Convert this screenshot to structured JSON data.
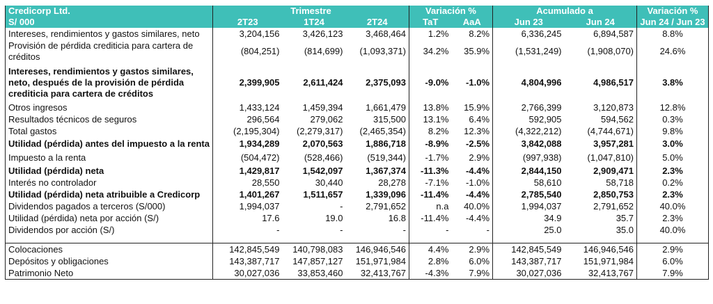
{
  "header": {
    "company": "Credicorp Ltd.",
    "currency": "S/ 000",
    "group_trimestre": "Trimestre",
    "group_variacion": "Variación %",
    "group_acumulado": "Acumulado a",
    "group_variacion2": "Variación %",
    "col_2T23": "2T23",
    "col_1T24": "1T24",
    "col_2T24": "2T24",
    "col_tat": "TaT",
    "col_aaa": "AaA",
    "col_jun23": "Jun 23",
    "col_jun24": "Jun 24",
    "col_var": "Jun 24 / Jun 23"
  },
  "rows": [
    {
      "label": "Intereses, rendimientos y gastos similares, neto",
      "v": [
        "3,204,156",
        "3,426,123",
        "3,468,464",
        "1.2%",
        "8.2%",
        "6,336,245",
        "6,894,587",
        "8.8%"
      ]
    },
    {
      "label": "Provisión de pérdida crediticia para cartera de créditos",
      "v": [
        "(804,251)",
        "(814,699)",
        "(1,093,371)",
        "34.2%",
        "35.9%",
        "(1,531,249)",
        "(1,908,070)",
        "24.6%"
      ]
    },
    {
      "label": "Intereses, rendimientos y gastos similares, neto, después de la provisión de pérdida crediticia para cartera de créditos",
      "v": [
        "2,399,905",
        "2,611,424",
        "2,375,093",
        "-9.0%",
        "-1.0%",
        "4,804,996",
        "4,986,517",
        "3.8%"
      ]
    },
    {
      "label": "Otros ingresos",
      "v": [
        "1,433,124",
        "1,459,394",
        "1,661,479",
        "13.8%",
        "15.9%",
        "2,766,399",
        "3,120,873",
        "12.8%"
      ]
    },
    {
      "label": "Resultados técnicos de seguros",
      "v": [
        "296,564",
        "279,062",
        "315,500",
        "13.1%",
        "6.4%",
        "592,905",
        "594,562",
        "0.3%"
      ]
    },
    {
      "label": "Total gastos",
      "v": [
        "(2,195,304)",
        "(2,279,317)",
        "(2,465,354)",
        "8.2%",
        "12.3%",
        "(4,322,212)",
        "(4,744,671)",
        "9.8%"
      ]
    },
    {
      "label": "Utilidad (pérdida) antes del impuesto a la renta",
      "v": [
        "1,934,289",
        "2,070,563",
        "1,886,718",
        "-8.9%",
        "-2.5%",
        "3,842,088",
        "3,957,281",
        "3.0%"
      ]
    },
    {
      "label": "Impuesto a la renta",
      "v": [
        "(504,472)",
        "(528,466)",
        "(519,344)",
        "-1.7%",
        "2.9%",
        "(997,938)",
        "(1,047,810)",
        "5.0%"
      ]
    },
    {
      "label": "Utilidad (pérdida) neta",
      "v": [
        "1,429,817",
        "1,542,097",
        "1,367,374",
        "-11.3%",
        "-4.4%",
        "2,844,150",
        "2,909,471",
        "2.3%"
      ]
    },
    {
      "label": "Interés no controlador",
      "v": [
        "28,550",
        "30,440",
        "28,278",
        "-7.1%",
        "-1.0%",
        "58,610",
        "58,718",
        "0.2%"
      ]
    },
    {
      "label": "Utilidad (pérdida) neta atribuible a Credicorp",
      "v": [
        "1,401,267",
        "1,511,657",
        "1,339,096",
        "-11.4%",
        "-4.4%",
        "2,785,540",
        "2,850,753",
        "2.3%"
      ]
    },
    {
      "label": "Dividendos pagados a terceros (S/000)",
      "v": [
        "1,994,037",
        "-",
        "2,791,652",
        "n.a",
        "40.0%",
        "1,994,037",
        "2,791,652",
        "40.0%"
      ]
    },
    {
      "label": "Utilidad (pérdida) neta por acción (S/)",
      "v": [
        "17.6",
        "19.0",
        "16.8",
        "-11.4%",
        "-4.4%",
        "34.9",
        "35.7",
        "2.3%"
      ]
    },
    {
      "label": "Dividendos por acción (S/)",
      "v": [
        "-",
        "-",
        "-",
        "-",
        "-",
        "25.0",
        "35.0",
        "40.0%"
      ]
    },
    {
      "label": "Colocaciones",
      "v": [
        "142,845,549",
        "140,798,083",
        "146,946,546",
        "4.4%",
        "2.9%",
        "142,845,549",
        "146,946,546",
        "2.9%"
      ]
    },
    {
      "label": "Depósitos y obligaciones",
      "v": [
        "143,387,717",
        "147,857,127",
        "151,971,984",
        "2.8%",
        "6.0%",
        "143,387,717",
        "151,971,984",
        "6.0%"
      ]
    },
    {
      "label": "Patrimonio Neto",
      "v": [
        "30,027,036",
        "33,853,460",
        "32,413,767",
        "-4.3%",
        "7.9%",
        "30,027,036",
        "32,413,767",
        "7.9%"
      ]
    }
  ]
}
